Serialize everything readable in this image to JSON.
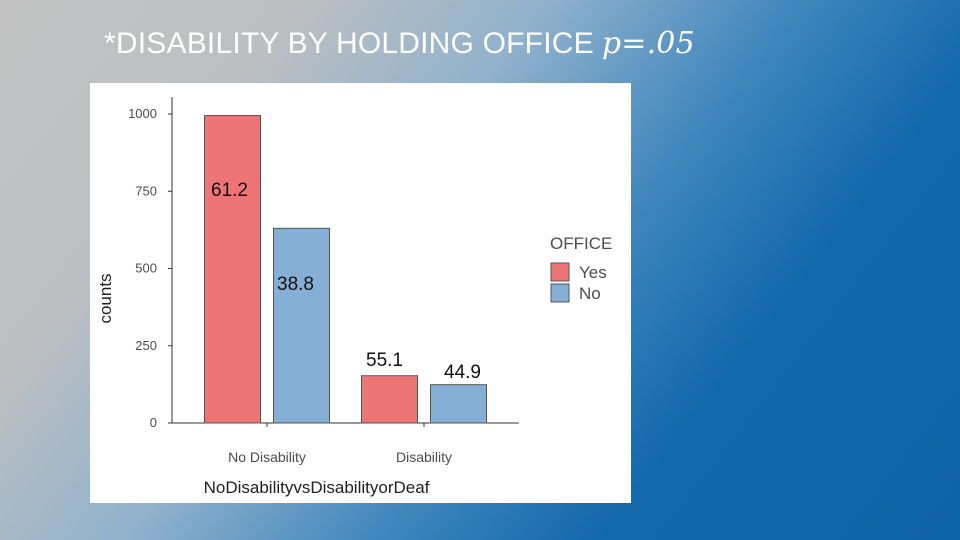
{
  "title": "*DISABILITY BY HOLDING OFFICE",
  "title_stat": "p=.05",
  "colors": {
    "yes": "#ee7576",
    "no": "#86afd6"
  },
  "chart_data": {
    "type": "bar",
    "categories": [
      "No Disability",
      "Disability"
    ],
    "series": [
      {
        "name": "Yes",
        "values": [
          995,
          153
        ],
        "labels": [
          "61.2",
          "55.1"
        ]
      },
      {
        "name": "No",
        "values": [
          630,
          124
        ],
        "labels": [
          "38.8",
          "44.9"
        ]
      }
    ],
    "xlabel": "NoDisabilityvsDisabilityorDeaf",
    "ylabel": "counts",
    "yticks": [
      0,
      250,
      500,
      750,
      1000
    ],
    "ylim": [
      0,
      1000
    ],
    "legend_title": "OFFICE",
    "legend_position": "right",
    "grid": false
  }
}
